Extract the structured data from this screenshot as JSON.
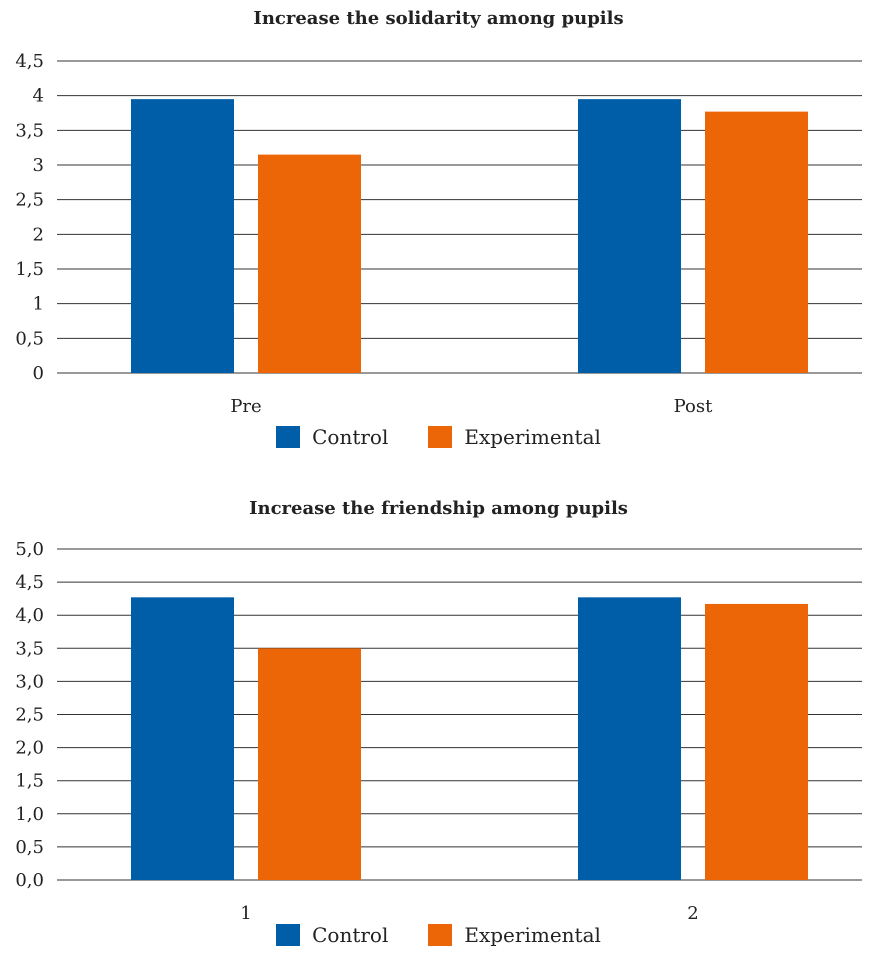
{
  "chart_data": [
    {
      "type": "bar",
      "title": "Increase the solidarity among pupils",
      "categories": [
        "Pre",
        "Post"
      ],
      "ylim": [
        0,
        4.5
      ],
      "yticks": [
        "0",
        "0,5",
        "1",
        "1,5",
        "2",
        "2,5",
        "3",
        "3,5",
        "4",
        "4,5"
      ],
      "grid": true,
      "legend": "bottom",
      "series": [
        {
          "name": "Control",
          "color": "#005da8",
          "values": [
            3.95,
            3.95
          ]
        },
        {
          "name": "Experimental",
          "color": "#ec6608",
          "values": [
            3.15,
            3.77
          ]
        }
      ]
    },
    {
      "type": "bar",
      "title": "Increase the friendship among pupils",
      "categories": [
        "1",
        "2"
      ],
      "ylim": [
        0,
        5.0
      ],
      "yticks": [
        "0,0",
        "0,5",
        "1,0",
        "1,5",
        "2,0",
        "2,5",
        "3,0",
        "3,5",
        "4,0",
        "4,5",
        "5,0"
      ],
      "grid": true,
      "legend": "bottom",
      "series": [
        {
          "name": "Control",
          "color": "#005da8",
          "values": [
            4.27,
            4.27
          ]
        },
        {
          "name": "Experimental",
          "color": "#ec6608",
          "values": [
            3.5,
            4.17
          ]
        }
      ]
    }
  ]
}
